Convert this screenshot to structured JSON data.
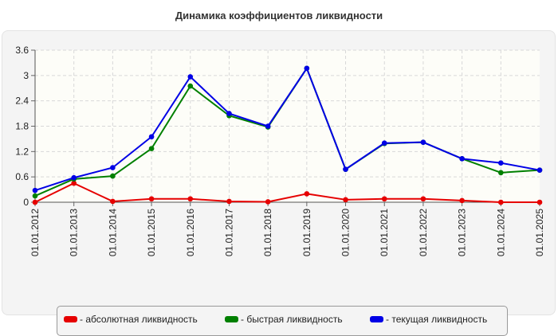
{
  "chart_data": {
    "type": "line",
    "title": "Динамика коэффициентов ликвидности",
    "xlabel": "",
    "ylabel": "",
    "categories": [
      "01.01.2012",
      "01.01.2013",
      "01.01.2014",
      "01.01.2015",
      "01.01.2016",
      "01.01.2017",
      "01.01.2018",
      "01.01.2019",
      "01.01.2020",
      "01.01.2021",
      "01.01.2022",
      "01.01.2023",
      "01.01.2024",
      "01.01.2025"
    ],
    "y_ticks": [
      "0",
      "0.6",
      "1.2",
      "1.8",
      "2.4",
      "3",
      "3.6"
    ],
    "ylim": [
      0,
      3.6
    ],
    "grid": true,
    "legend_position": "bottom",
    "series": [
      {
        "name": "- абсолютная ликвидность",
        "color": "#e60000",
        "values": [
          0.0,
          0.45,
          0.02,
          0.08,
          0.08,
          0.02,
          0.01,
          0.2,
          0.06,
          0.08,
          0.08,
          0.04,
          0.0,
          0.0
        ]
      },
      {
        "name": "- быстрая ликвидность",
        "color": "#008000",
        "values": [
          0.15,
          0.55,
          0.62,
          1.27,
          2.75,
          2.05,
          1.78,
          3.17,
          0.78,
          1.39,
          1.42,
          1.03,
          0.7,
          0.76
        ]
      },
      {
        "name": "- текущая ликвидность",
        "color": "#0000e6",
        "values": [
          0.28,
          0.58,
          0.82,
          1.55,
          2.97,
          2.1,
          1.8,
          3.17,
          0.78,
          1.4,
          1.42,
          1.03,
          0.93,
          0.76
        ]
      }
    ]
  }
}
